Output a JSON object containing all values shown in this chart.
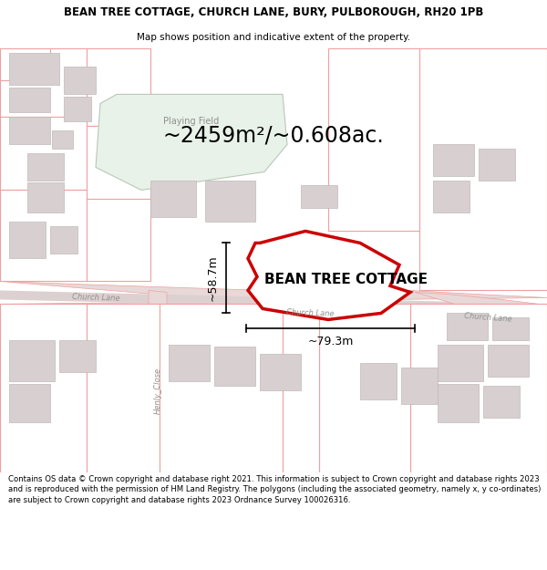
{
  "title": "BEAN TREE COTTAGE, CHURCH LANE, BURY, PULBOROUGH, RH20 1PB",
  "subtitle": "Map shows position and indicative extent of the property.",
  "area_text": "~2459m²/~0.608ac.",
  "property_label": "BEAN TREE COTTAGE",
  "dim_width": "~79.3m",
  "dim_height": "~58.7m",
  "playing_field_label": "Playing Field",
  "church_lane_label1": "Church Lane",
  "church_lane_label2": "Church Lane",
  "church_lane_label3": "Church Lane",
  "henly_close_label": "Henly_Close",
  "footer": "Contains OS data © Crown copyright and database right 2021. This information is subject to Crown copyright and database rights 2023 and is reproduced with the permission of HM Land Registry. The polygons (including the associated geometry, namely x, y co-ordinates) are subject to Crown copyright and database rights 2023 Ordnance Survey 100026316.",
  "map_bg": "#ffffff",
  "parcel_edge": "#f0a0a0",
  "parcel_fill": "#ffffff",
  "building_fill": "#d8d0d0",
  "building_edge": "#c0b8b8",
  "pf_fill": "#e8f2e8",
  "pf_edge": "#b8c8b8",
  "road_fill": "#e8d8d8",
  "road_center_fill": "#ddd0d0",
  "prop_edge": "#cc0000",
  "prop_lw": 2.5,
  "dim_color": "#000000",
  "road_label_color": "#909090",
  "text_color": "#000000",
  "white": "#ffffff",
  "title_fs": 8.5,
  "subtitle_fs": 7.5,
  "area_fs": 17,
  "label_fs": 11,
  "dim_fs": 9,
  "road_fs": 6,
  "pf_fs": 7,
  "footer_fs": 6.1
}
